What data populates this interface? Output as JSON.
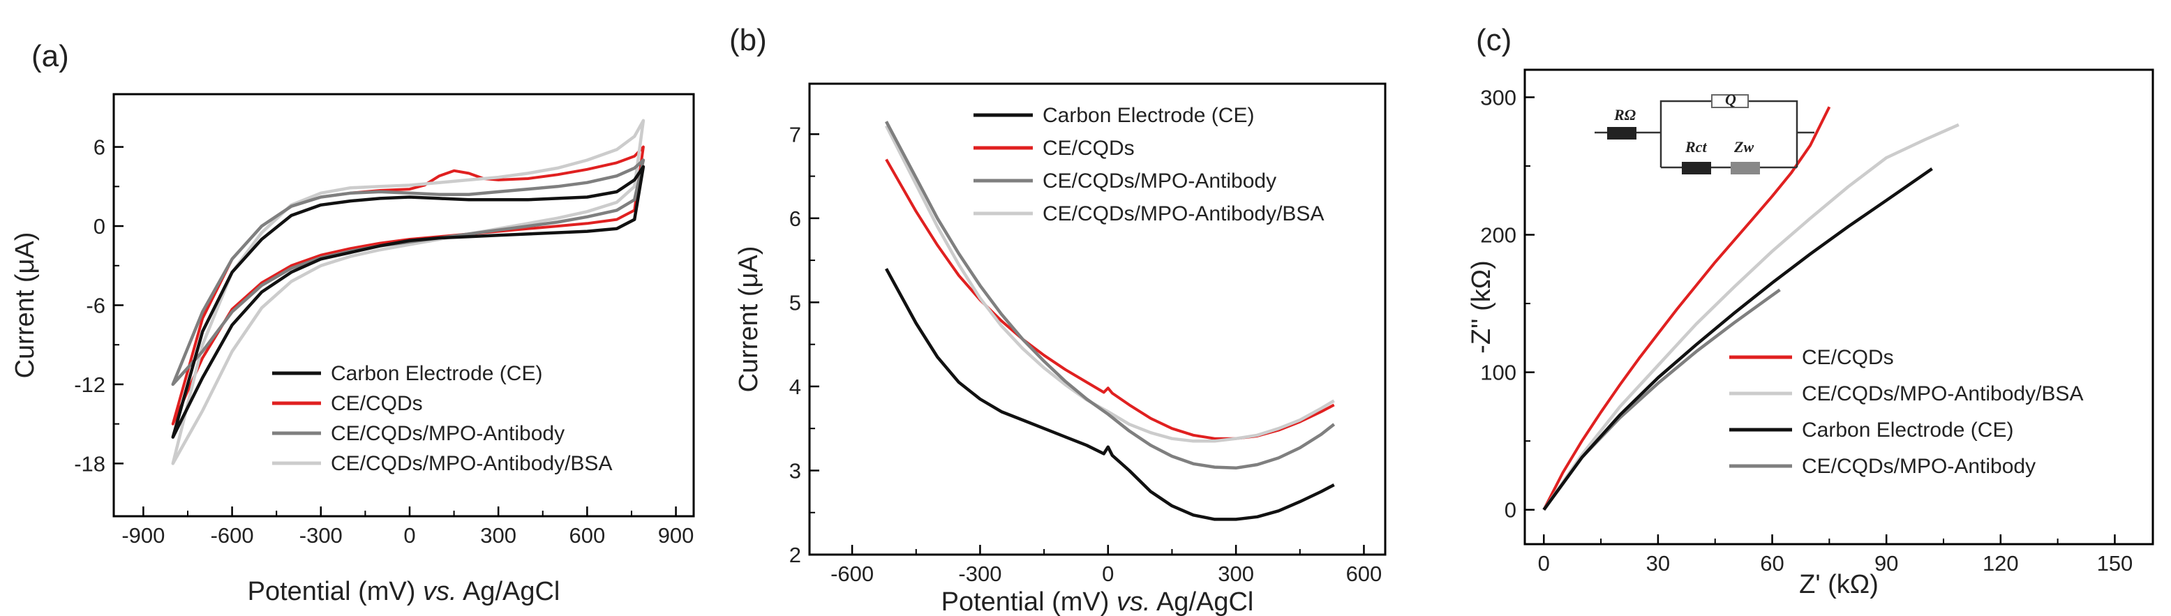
{
  "chart_data": [
    {
      "panel": "(a)",
      "type": "line",
      "xlabel": "Potential (mV)",
      "xlabel_italic": "vs.",
      "xlabel_tail": "Ag/AgCl",
      "ylabel": "Current (μA)",
      "xlim": [
        -1000,
        960
      ],
      "ylim": [
        -22,
        10
      ],
      "xticks": [
        -900,
        -600,
        -300,
        0,
        300,
        600,
        900
      ],
      "yticks": [
        -18,
        -12,
        -6,
        0,
        6
      ],
      "legend_position": "bottom-right",
      "series": [
        {
          "name": "Carbon Electrode (CE)",
          "color": "#111111",
          "upper": {
            "x": [
              -800,
              -700,
              -600,
              -500,
              -400,
              -300,
              -200,
              -100,
              0,
              100,
              200,
              300,
              400,
              500,
              600,
              700,
              760,
              790
            ],
            "y": [
              -16,
              -8,
              -3.5,
              -1,
              0.8,
              1.6,
              1.9,
              2.1,
              2.2,
              2.1,
              2,
              2,
              2,
              2.1,
              2.2,
              2.6,
              3.5,
              4.5
            ]
          },
          "lower": {
            "x": [
              -800,
              -700,
              -600,
              -500,
              -400,
              -300,
              -200,
              -100,
              0,
              100,
              200,
              300,
              400,
              500,
              600,
              700,
              760,
              790
            ],
            "y": [
              -16,
              -11.5,
              -7.5,
              -5,
              -3.5,
              -2.5,
              -2,
              -1.5,
              -1.1,
              -0.9,
              -0.8,
              -0.7,
              -0.6,
              -0.5,
              -0.4,
              -0.2,
              0.5,
              4.5
            ]
          }
        },
        {
          "name": "CE/CQDs",
          "color": "#e02020",
          "upper": {
            "x": [
              -800,
              -700,
              -600,
              -500,
              -400,
              -300,
              -200,
              -100,
              0,
              50,
              100,
              150,
              200,
              250,
              300,
              400,
              500,
              600,
              700,
              760,
              790
            ],
            "y": [
              -15,
              -7,
              -2.5,
              0,
              1.5,
              2.2,
              2.5,
              2.7,
              2.8,
              3.1,
              3.8,
              4.2,
              4,
              3.6,
              3.5,
              3.6,
              3.9,
              4.3,
              4.8,
              5.3,
              6
            ]
          },
          "lower": {
            "x": [
              -800,
              -700,
              -600,
              -500,
              -400,
              -300,
              -200,
              -100,
              0,
              100,
              200,
              300,
              400,
              500,
              600,
              700,
              760,
              790
            ],
            "y": [
              -15,
              -10,
              -6.3,
              -4.3,
              -3,
              -2.2,
              -1.7,
              -1.3,
              -1,
              -0.8,
              -0.6,
              -0.4,
              -0.2,
              0,
              0.2,
              0.5,
              1.2,
              6
            ]
          }
        },
        {
          "name": "CE/CQDs/MPO-Antibody",
          "color": "#7f7f7f",
          "upper": {
            "x": [
              -800,
              -700,
              -600,
              -500,
              -400,
              -300,
              -200,
              -100,
              0,
              100,
              200,
              300,
              400,
              500,
              600,
              700,
              760,
              790
            ],
            "y": [
              -12,
              -6.5,
              -2.5,
              0,
              1.5,
              2.2,
              2.5,
              2.6,
              2.5,
              2.4,
              2.4,
              2.6,
              2.8,
              3,
              3.3,
              3.8,
              4.4,
              5
            ]
          },
          "lower": {
            "x": [
              -800,
              -700,
              -600,
              -500,
              -400,
              -300,
              -200,
              -100,
              0,
              100,
              200,
              300,
              400,
              500,
              600,
              700,
              760,
              790
            ],
            "y": [
              -12,
              -9.5,
              -6.5,
              -4.5,
              -3.2,
              -2.4,
              -1.9,
              -1.5,
              -1.2,
              -0.9,
              -0.6,
              -0.3,
              0,
              0.3,
              0.7,
              1.2,
              2,
              5
            ]
          }
        },
        {
          "name": "CE/CQDs/MPO-Antibody/BSA",
          "color": "#cccccc",
          "upper": {
            "x": [
              -800,
              -700,
              -600,
              -500,
              -400,
              -300,
              -200,
              -100,
              0,
              100,
              200,
              300,
              400,
              500,
              600,
              700,
              760,
              790
            ],
            "y": [
              -18,
              -9,
              -3.5,
              -0.5,
              1.6,
              2.5,
              2.9,
              3,
              3.1,
              3.3,
              3.5,
              3.7,
              4,
              4.4,
              5,
              5.8,
              6.8,
              8
            ]
          },
          "lower": {
            "x": [
              -800,
              -700,
              -600,
              -500,
              -400,
              -300,
              -200,
              -100,
              0,
              100,
              200,
              300,
              400,
              500,
              600,
              700,
              760,
              790
            ],
            "y": [
              -18,
              -14,
              -9.5,
              -6.2,
              -4.2,
              -3,
              -2.3,
              -1.8,
              -1.4,
              -1,
              -0.6,
              -0.2,
              0.2,
              0.6,
              1.1,
              1.8,
              3,
              8
            ]
          }
        }
      ]
    },
    {
      "panel": "(b)",
      "type": "line",
      "xlabel": "Potential (mV)",
      "xlabel_italic": "vs.",
      "xlabel_tail": "Ag/AgCl",
      "ylabel": "Current (μA)",
      "xlim": [
        -700,
        650
      ],
      "ylim": [
        2,
        7.6
      ],
      "xticks": [
        -600,
        -300,
        0,
        300,
        600
      ],
      "yticks": [
        2,
        3,
        4,
        5,
        6,
        7
      ],
      "legend_position": "top-right",
      "series": [
        {
          "name": "Carbon Electrode (CE)",
          "color": "#111111",
          "x": [
            -520,
            -450,
            -400,
            -350,
            -300,
            -250,
            -200,
            -150,
            -100,
            -50,
            -10,
            0,
            10,
            50,
            100,
            150,
            200,
            250,
            300,
            350,
            400,
            450,
            500,
            530
          ],
          "y": [
            5.4,
            4.75,
            4.35,
            4.05,
            3.85,
            3.7,
            3.6,
            3.5,
            3.4,
            3.3,
            3.2,
            3.28,
            3.18,
            3.0,
            2.75,
            2.58,
            2.47,
            2.42,
            2.42,
            2.45,
            2.52,
            2.63,
            2.75,
            2.83
          ]
        },
        {
          "name": "CE/CQDs",
          "color": "#e02020",
          "x": [
            -520,
            -450,
            -400,
            -350,
            -300,
            -250,
            -200,
            -150,
            -100,
            -50,
            -10,
            0,
            10,
            50,
            100,
            150,
            200,
            250,
            300,
            350,
            400,
            450,
            500,
            530
          ],
          "y": [
            6.7,
            6.08,
            5.68,
            5.32,
            5.03,
            4.78,
            4.56,
            4.37,
            4.2,
            4.05,
            3.93,
            3.98,
            3.92,
            3.78,
            3.62,
            3.5,
            3.42,
            3.38,
            3.38,
            3.41,
            3.48,
            3.58,
            3.7,
            3.78
          ]
        },
        {
          "name": "CE/CQDs/MPO-Antibody",
          "color": "#7f7f7f",
          "x": [
            -520,
            -450,
            -400,
            -350,
            -300,
            -250,
            -200,
            -150,
            -100,
            -50,
            0,
            50,
            100,
            150,
            200,
            250,
            300,
            350,
            400,
            450,
            500,
            530
          ],
          "y": [
            7.15,
            6.48,
            6.0,
            5.58,
            5.2,
            4.86,
            4.56,
            4.3,
            4.06,
            3.85,
            3.67,
            3.47,
            3.3,
            3.17,
            3.08,
            3.04,
            3.03,
            3.07,
            3.15,
            3.27,
            3.43,
            3.55
          ]
        },
        {
          "name": "CE/CQDs/MPO-Antibody/BSA",
          "color": "#cccccc",
          "x": [
            -520,
            -450,
            -400,
            -350,
            -300,
            -250,
            -200,
            -150,
            -100,
            -50,
            0,
            50,
            100,
            150,
            200,
            250,
            300,
            350,
            400,
            450,
            500,
            530
          ],
          "y": [
            7.1,
            6.4,
            5.9,
            5.45,
            5.05,
            4.72,
            4.45,
            4.22,
            4.02,
            3.84,
            3.7,
            3.55,
            3.45,
            3.38,
            3.35,
            3.35,
            3.38,
            3.42,
            3.5,
            3.6,
            3.74,
            3.83
          ]
        }
      ]
    },
    {
      "panel": "(c)",
      "type": "line",
      "xlabel": "Z' (kΩ)",
      "ylabel": "-Z'' (kΩ)",
      "xlim": [
        -5,
        160
      ],
      "ylim": [
        -25,
        320
      ],
      "xticks": [
        0,
        30,
        60,
        90,
        120,
        150
      ],
      "yticks": [
        0,
        100,
        200,
        300
      ],
      "legend_position": "bottom-right",
      "inset_labels": {
        "r_omega": "RΩ",
        "q": "Q",
        "r_ct": "Rct",
        "z_w": "Zw"
      },
      "series": [
        {
          "name": "CE/CQDs",
          "color": "#e02020",
          "x": [
            0,
            5,
            10,
            15,
            20,
            25,
            30,
            35,
            40,
            45,
            50,
            55,
            60,
            65,
            70,
            75
          ],
          "y": [
            0,
            27,
            50,
            71,
            91,
            110,
            128,
            146,
            163,
            180,
            196,
            212,
            228,
            245,
            265,
            293
          ]
        },
        {
          "name": "CE/CQDs/MPO-Antibody/BSA",
          "color": "#cccccc",
          "x": [
            0,
            10,
            20,
            30,
            40,
            50,
            60,
            70,
            80,
            90,
            100,
            109
          ],
          "y": [
            0,
            40,
            75,
            105,
            135,
            162,
            188,
            212,
            235,
            256,
            269,
            280
          ]
        },
        {
          "name": "Carbon Electrode (CE)",
          "color": "#111111",
          "x": [
            0,
            10,
            20,
            30,
            40,
            50,
            60,
            70,
            80,
            90,
            102
          ],
          "y": [
            0,
            38,
            69,
            96,
            120,
            143,
            165,
            186,
            206,
            225,
            248
          ]
        },
        {
          "name": "CE/CQDs/MPO-Antibody",
          "color": "#7f7f7f",
          "x": [
            0,
            10,
            20,
            30,
            40,
            50,
            62
          ],
          "y": [
            0,
            38,
            67,
            92,
            115,
            136,
            160
          ]
        }
      ]
    }
  ]
}
